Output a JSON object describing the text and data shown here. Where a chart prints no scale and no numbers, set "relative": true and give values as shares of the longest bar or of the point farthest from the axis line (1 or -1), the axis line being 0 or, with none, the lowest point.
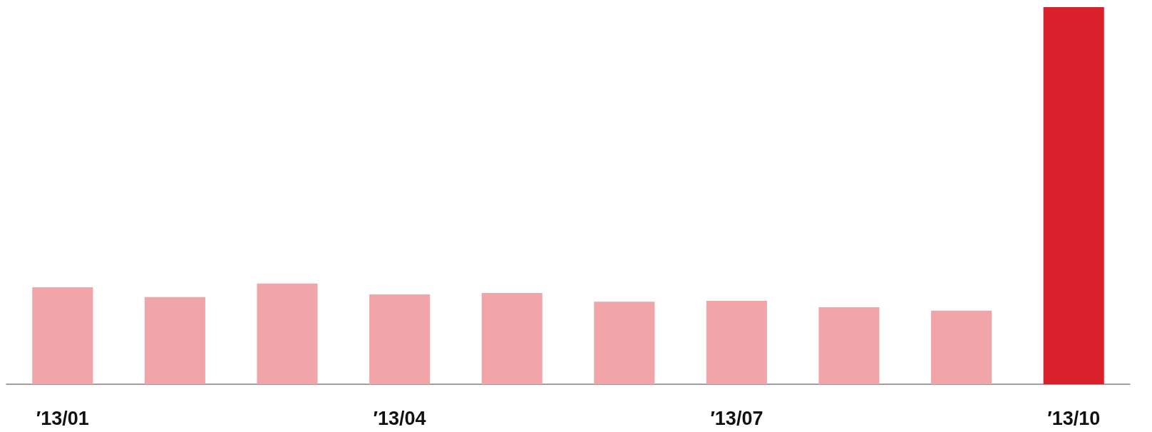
{
  "chart_data": {
    "type": "bar",
    "relative": true,
    "categories": [
      "′13/01",
      null,
      null,
      "′13/04",
      null,
      null,
      "′13/07",
      null,
      null,
      "′13/10"
    ],
    "values": [
      0.257,
      0.231,
      0.267,
      0.238,
      0.242,
      0.219,
      0.221,
      0.204,
      0.195,
      1
    ],
    "colors": [
      "#f2a5a8",
      "#f2a5a8",
      "#f2a5a8",
      "#f2a5a8",
      "#f2a5a8",
      "#f2a5a8",
      "#f2a5a8",
      "#f2a5a8",
      "#f2a5a8",
      "#da212b"
    ],
    "data_labels": false
  }
}
